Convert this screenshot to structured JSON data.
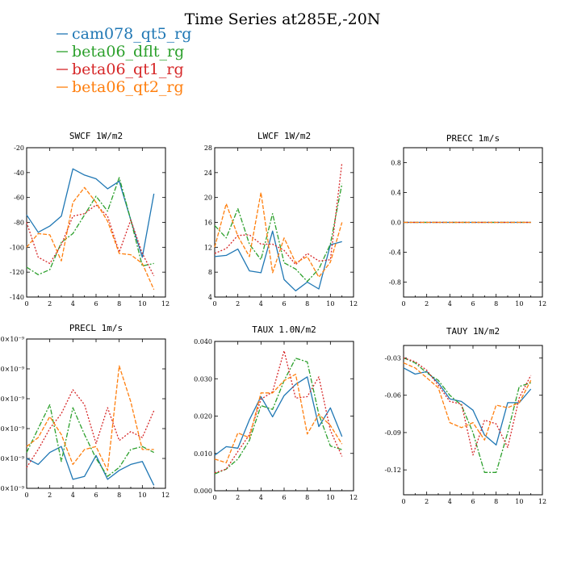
{
  "figure": {
    "title": "Time Series at285E,-20N"
  },
  "legend": [
    {
      "name": "cam078_qt5_rg",
      "color": "#1f77b4"
    },
    {
      "name": "beta06_dflt_rg",
      "color": "#2ca02c"
    },
    {
      "name": "beta06_qt1_rg",
      "color": "#d62728"
    },
    {
      "name": "beta06_qt2_rg",
      "color": "#ff7f0e"
    }
  ],
  "chart_data": [
    {
      "type": "line",
      "title": "SWCF   1W/m2",
      "x": [
        0,
        1,
        2,
        3,
        4,
        5,
        6,
        7,
        8,
        9,
        10,
        11
      ],
      "xlim": [
        0,
        12
      ],
      "xticks": [
        0,
        2,
        4,
        6,
        8,
        10,
        12
      ],
      "xtick_labels": [
        "0",
        "2",
        "4",
        "6",
        "8",
        "10",
        "12"
      ],
      "ylim": [
        -140,
        -20
      ],
      "yticks": [
        -140,
        -120,
        -100,
        -80,
        -60,
        -40,
        -20
      ],
      "ytick_labels": [
        "-140",
        "-120",
        "-100",
        "-80",
        "-60",
        "-40",
        "-20"
      ],
      "series": [
        {
          "name": "cam078_qt5_rg",
          "values": [
            -74,
            -88,
            -83,
            -75,
            -37,
            -42,
            -45,
            -53,
            -47,
            -78,
            -108,
            -57
          ]
        },
        {
          "name": "beta06_dflt_rg",
          "values": [
            -116,
            -122,
            -118,
            -96,
            -89,
            -74,
            -59,
            -71,
            -44,
            -78,
            -115,
            -113
          ]
        },
        {
          "name": "beta06_qt1_rg",
          "values": [
            -80,
            -108,
            -113,
            -98,
            -75,
            -73,
            -66,
            -75,
            -104,
            -78,
            -105,
            -123
          ]
        },
        {
          "name": "beta06_qt2_rg",
          "values": [
            -100,
            -89,
            -90,
            -111,
            -64,
            -52,
            -64,
            -79,
            -105,
            -106,
            -113,
            -134
          ]
        }
      ]
    },
    {
      "type": "line",
      "title": "LWCF   1W/m2",
      "x": [
        0,
        1,
        2,
        3,
        4,
        5,
        6,
        7,
        8,
        9,
        10,
        11
      ],
      "xlim": [
        0,
        12
      ],
      "xticks": [
        0,
        2,
        4,
        6,
        8,
        10,
        12
      ],
      "xtick_labels": [
        "0",
        "2",
        "4",
        "6",
        "8",
        "10",
        "12"
      ],
      "ylim": [
        4,
        28
      ],
      "yticks": [
        4,
        8,
        12,
        16,
        20,
        24,
        28
      ],
      "ytick_labels": [
        "4",
        "8",
        "12",
        "16",
        "20",
        "24",
        "28"
      ],
      "series": [
        {
          "name": "cam078_qt5_rg",
          "values": [
            10.5,
            10.7,
            11.7,
            8.2,
            7.9,
            14.6,
            6.8,
            5.0,
            6.4,
            5.3,
            12.4,
            12.9
          ]
        },
        {
          "name": "beta06_dflt_rg",
          "values": [
            15.5,
            13.5,
            18.2,
            12.5,
            10.0,
            17.4,
            9.5,
            8.5,
            6.5,
            8.5,
            12.5,
            22.2
          ]
        },
        {
          "name": "beta06_qt1_rg",
          "values": [
            11.0,
            11.8,
            13.9,
            14.0,
            12.5,
            12.5,
            11.5,
            9.2,
            11.0,
            9.8,
            10.0,
            25.6
          ]
        },
        {
          "name": "beta06_qt2_rg",
          "values": [
            12.0,
            19.0,
            13.8,
            10.5,
            20.8,
            7.9,
            13.5,
            9.5,
            10.5,
            7.2,
            9.6,
            16.0
          ]
        }
      ]
    },
    {
      "type": "line",
      "title": "PRECC   1m/s",
      "x": [
        0,
        1,
        2,
        3,
        4,
        5,
        6,
        7,
        8,
        9,
        10,
        11
      ],
      "xlim": [
        0,
        12
      ],
      "xticks": [
        0,
        2,
        4,
        6,
        8,
        10,
        12
      ],
      "xtick_labels": [
        "0",
        "2",
        "4",
        "6",
        "8",
        "10",
        "12"
      ],
      "ylim": [
        -1.0,
        1.0
      ],
      "yticks": [
        -0.8,
        -0.4,
        0.0,
        0.4,
        0.8
      ],
      "ytick_labels": [
        "-0.8",
        "-0.4",
        "0.0",
        "0.4",
        "0.8"
      ],
      "series": [
        {
          "name": "cam078_qt5_rg",
          "values": [
            0,
            0,
            0,
            0,
            0,
            0,
            0,
            0,
            0,
            0,
            0,
            0
          ]
        },
        {
          "name": "beta06_dflt_rg",
          "values": [
            0,
            0,
            0,
            0,
            0,
            0,
            0,
            0,
            0,
            0,
            0,
            0
          ]
        },
        {
          "name": "beta06_qt1_rg",
          "values": [
            0,
            0,
            0,
            0,
            0,
            0,
            0,
            0,
            0,
            0,
            0,
            0
          ]
        },
        {
          "name": "beta06_qt2_rg",
          "values": [
            0,
            0,
            0,
            0,
            0,
            0,
            0,
            0,
            0,
            0,
            0,
            0
          ]
        }
      ]
    },
    {
      "type": "line",
      "title": "PRECL   1m/s",
      "x": [
        0,
        1,
        2,
        3,
        4,
        5,
        6,
        7,
        8,
        9,
        10,
        11
      ],
      "xlim": [
        0,
        12
      ],
      "xticks": [
        0,
        2,
        4,
        6,
        8,
        10,
        12
      ],
      "xtick_labels": [
        "0",
        "2",
        "4",
        "6",
        "8",
        "10",
        "12"
      ],
      "ylim": [
        0.0,
        5.0
      ],
      "yticks": [
        0.0,
        1.0,
        2.0,
        3.0,
        4.0,
        5.0
      ],
      "ytick_labels": [
        "0.0×10⁻⁹",
        "1.0×10⁻⁹",
        "2.0×10⁻⁹",
        "3.0×10⁻⁹",
        "4.0×10⁻⁹",
        "5.0×10⁻⁹"
      ],
      "series": [
        {
          "name": "cam078_qt5_rg",
          "values": [
            1.0,
            0.8,
            1.2,
            1.4,
            0.3,
            0.4,
            1.1,
            0.3,
            0.6,
            0.8,
            0.9,
            0.1
          ]
        },
        {
          "name": "beta06_dflt_rg",
          "values": [
            1.2,
            2.0,
            2.8,
            0.9,
            2.7,
            1.8,
            1.0,
            0.4,
            0.7,
            1.3,
            1.4,
            1.2
          ]
        },
        {
          "name": "beta06_qt1_rg",
          "values": [
            0.7,
            1.3,
            2.0,
            2.5,
            3.3,
            2.8,
            1.5,
            2.7,
            1.6,
            1.9,
            1.7,
            2.6
          ]
        },
        {
          "name": "beta06_qt2_rg",
          "values": [
            1.4,
            1.7,
            2.4,
            1.8,
            0.8,
            1.3,
            1.4,
            0.6,
            4.1,
            2.9,
            1.3,
            1.3
          ]
        }
      ]
    },
    {
      "type": "line",
      "title": "TAUX   1.0N/m2",
      "x": [
        0,
        1,
        2,
        3,
        4,
        5,
        6,
        7,
        8,
        9,
        10,
        11
      ],
      "xlim": [
        0,
        12
      ],
      "xticks": [
        0,
        2,
        4,
        6,
        8,
        10,
        12
      ],
      "xtick_labels": [
        "0",
        "2",
        "4",
        "6",
        "8",
        "10",
        "12"
      ],
      "ylim": [
        0.0,
        0.04
      ],
      "yticks": [
        0.0,
        0.01,
        0.02,
        0.03,
        0.04
      ],
      "ytick_labels": [
        "0.000",
        "0.010",
        "0.020",
        "0.030",
        "0.040"
      ],
      "series": [
        {
          "name": "cam078_qt5_rg",
          "values": [
            0.0095,
            0.0118,
            0.0114,
            0.019,
            0.0252,
            0.0198,
            0.0255,
            0.0285,
            0.0305,
            0.0172,
            0.0222,
            0.0145
          ]
        },
        {
          "name": "beta06_dflt_rg",
          "values": [
            0.0045,
            0.0058,
            0.0085,
            0.0135,
            0.0228,
            0.0218,
            0.0295,
            0.0355,
            0.0345,
            0.0205,
            0.012,
            0.011
          ]
        },
        {
          "name": "beta06_qt1_rg",
          "values": [
            0.0048,
            0.0058,
            0.0105,
            0.015,
            0.0245,
            0.0265,
            0.0375,
            0.0248,
            0.0252,
            0.0305,
            0.0162,
            0.0092
          ]
        },
        {
          "name": "beta06_qt2_rg",
          "values": [
            0.0085,
            0.0075,
            0.0155,
            0.0142,
            0.0262,
            0.0262,
            0.0295,
            0.0312,
            0.0152,
            0.0205,
            0.0175,
            0.0125
          ]
        }
      ]
    },
    {
      "type": "line",
      "title": "TAUY   1N/m2",
      "x": [
        0,
        1,
        2,
        3,
        4,
        5,
        6,
        7,
        8,
        9,
        10,
        11
      ],
      "xlim": [
        0,
        12
      ],
      "xticks": [
        0,
        2,
        4,
        6,
        8,
        10,
        12
      ],
      "xtick_labels": [
        "0",
        "2",
        "4",
        "6",
        "8",
        "10",
        "12"
      ],
      "ylim": [
        -0.14,
        -0.02
      ],
      "yticks": [
        -0.12,
        -0.09,
        -0.06,
        -0.03
      ],
      "ytick_labels": [
        "-0.12",
        "-0.09",
        "-0.06",
        "-0.03"
      ],
      "series": [
        {
          "name": "cam078_qt5_rg",
          "values": [
            -0.038,
            -0.043,
            -0.041,
            -0.05,
            -0.063,
            -0.065,
            -0.072,
            -0.092,
            -0.1,
            -0.066,
            -0.066,
            -0.055
          ]
        },
        {
          "name": "beta06_dflt_rg",
          "values": [
            -0.03,
            -0.034,
            -0.042,
            -0.048,
            -0.06,
            -0.068,
            -0.09,
            -0.122,
            -0.122,
            -0.09,
            -0.053,
            -0.05
          ]
        },
        {
          "name": "beta06_qt1_rg",
          "values": [
            -0.03,
            -0.033,
            -0.04,
            -0.052,
            -0.065,
            -0.067,
            -0.108,
            -0.08,
            -0.083,
            -0.102,
            -0.062,
            -0.044
          ]
        },
        {
          "name": "beta06_qt2_rg",
          "values": [
            -0.034,
            -0.038,
            -0.046,
            -0.054,
            -0.082,
            -0.086,
            -0.082,
            -0.096,
            -0.068,
            -0.07,
            -0.066,
            -0.048
          ]
        }
      ]
    }
  ]
}
